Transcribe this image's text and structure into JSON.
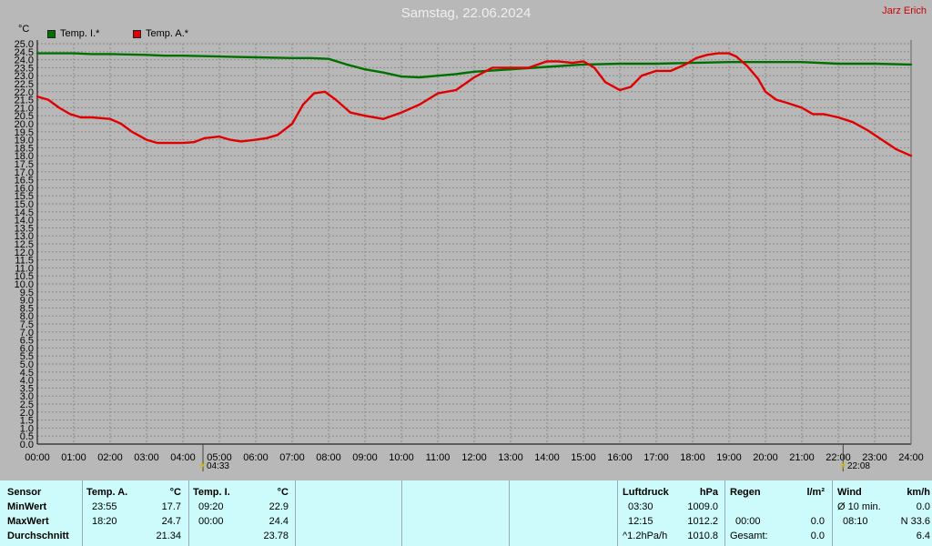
{
  "header": {
    "title": "Samstag, 22.06.2024",
    "author": "Jarz Erich",
    "unit": "°C"
  },
  "legend": [
    {
      "name": "Temp. I.*",
      "color": "#007000"
    },
    {
      "name": "Temp. A.*",
      "color": "#e00000"
    }
  ],
  "sun": {
    "sunrise": "04:33",
    "sunset": "22:08"
  },
  "chart_data": {
    "type": "line",
    "title": "Samstag, 22.06.2024",
    "ylabel": "°C",
    "ylim": [
      0,
      25
    ],
    "yticks": [
      "0.0",
      "0.5",
      "1.0",
      "1.5",
      "2.0",
      "2.5",
      "3.0",
      "3.5",
      "4.0",
      "4.5",
      "5.0",
      "5.5",
      "6.0",
      "6.5",
      "7.0",
      "7.5",
      "8.0",
      "8.5",
      "9.0",
      "9.5",
      "10.0",
      "10.5",
      "11.0",
      "11.5",
      "12.0",
      "12.5",
      "13.0",
      "13.5",
      "14.0",
      "14.5",
      "15.0",
      "15.5",
      "16.0",
      "16.5",
      "17.0",
      "17.5",
      "18.0",
      "18.5",
      "19.0",
      "19.5",
      "20.0",
      "20.5",
      "21.0",
      "21.5",
      "22.0",
      "22.5",
      "23.0",
      "23.5",
      "24.0",
      "24.5",
      "25.0"
    ],
    "xlim": [
      0,
      24
    ],
    "xticks": [
      "00:00",
      "01:00",
      "02:00",
      "03:00",
      "04:00",
      "05:00",
      "06:00",
      "07:00",
      "08:00",
      "09:00",
      "10:00",
      "11:00",
      "12:00",
      "13:00",
      "14:00",
      "15:00",
      "16:00",
      "17:00",
      "18:00",
      "19:00",
      "20:00",
      "21:00",
      "22:00",
      "23:00",
      "24:00"
    ],
    "grid": true,
    "legend_position": "top-left",
    "series": [
      {
        "name": "Temp. I.*",
        "color": "#007000",
        "x": [
          0,
          1,
          1.5,
          2,
          3,
          3.5,
          4,
          5,
          6,
          7,
          7.5,
          8,
          8.5,
          9,
          9.5,
          10,
          10.5,
          11,
          11.5,
          12,
          13,
          14,
          15,
          16,
          17,
          18,
          19,
          20,
          21,
          22,
          23,
          24
        ],
        "y": [
          24.4,
          24.4,
          24.35,
          24.35,
          24.3,
          24.25,
          24.25,
          24.2,
          24.15,
          24.1,
          24.1,
          24.05,
          23.7,
          23.4,
          23.2,
          22.95,
          22.9,
          23.0,
          23.1,
          23.25,
          23.4,
          23.55,
          23.7,
          23.75,
          23.75,
          23.8,
          23.85,
          23.85,
          23.85,
          23.75,
          23.75,
          23.7
        ]
      },
      {
        "name": "Temp. A.*",
        "color": "#e00000",
        "x": [
          0,
          0.3,
          0.6,
          0.9,
          1.2,
          1.5,
          2,
          2.3,
          2.6,
          3,
          3.3,
          3.6,
          4,
          4.3,
          4.6,
          5,
          5.3,
          5.6,
          6,
          6.3,
          6.6,
          7,
          7.3,
          7.6,
          7.9,
          8.2,
          8.6,
          9,
          9.5,
          10,
          10.5,
          11,
          11.5,
          12,
          12.5,
          13,
          13.5,
          14,
          14.3,
          14.7,
          15,
          15.3,
          15.6,
          16,
          16.3,
          16.6,
          17,
          17.4,
          17.8,
          18.1,
          18.4,
          18.7,
          19,
          19.2,
          19.5,
          19.8,
          20,
          20.3,
          20.6,
          21,
          21.3,
          21.6,
          22,
          22.4,
          22.8,
          23.2,
          23.6,
          24
        ],
        "y": [
          21.7,
          21.5,
          21.0,
          20.6,
          20.4,
          20.4,
          20.3,
          20.0,
          19.5,
          19.0,
          18.8,
          18.8,
          18.8,
          18.85,
          19.1,
          19.2,
          19.0,
          18.9,
          19.0,
          19.1,
          19.3,
          20.0,
          21.2,
          21.9,
          22.0,
          21.5,
          20.7,
          20.5,
          20.3,
          20.7,
          21.2,
          21.9,
          22.1,
          22.9,
          23.5,
          23.5,
          23.5,
          23.9,
          23.9,
          23.8,
          23.9,
          23.5,
          22.6,
          22.1,
          22.3,
          23.0,
          23.3,
          23.3,
          23.7,
          24.1,
          24.3,
          24.4,
          24.4,
          24.2,
          23.6,
          22.8,
          22.0,
          21.5,
          21.3,
          21.0,
          20.6,
          20.6,
          20.4,
          20.1,
          19.6,
          19.0,
          18.4,
          18.0
        ]
      }
    ]
  },
  "table": {
    "sensor": {
      "header": "Sensor",
      "rows": [
        "MinWert",
        "MaxWert",
        "Durchschnitt"
      ]
    },
    "temp_a": {
      "header": "Temp. A.",
      "unit": "°C",
      "rows": [
        {
          "time": "23:55",
          "value": "17.7"
        },
        {
          "time": "18:20",
          "value": "24.7"
        },
        {
          "time": "",
          "value": "21.34"
        }
      ]
    },
    "temp_i": {
      "header": "Temp. I.",
      "unit": "°C",
      "rows": [
        {
          "time": "09:20",
          "value": "22.9"
        },
        {
          "time": "00:00",
          "value": "24.4"
        },
        {
          "time": "",
          "value": "23.78"
        }
      ]
    },
    "luftdruck": {
      "header": "Luftdruck",
      "unit": "hPa",
      "rows": [
        {
          "time": "03:30",
          "value": "1009.0"
        },
        {
          "time": "12:15",
          "value": "1012.2"
        },
        {
          "time": "^1.2hPa/h",
          "value": "1010.8"
        }
      ]
    },
    "regen": {
      "header": "Regen",
      "unit": "l/m²",
      "rows": [
        {
          "time": "",
          "value": ""
        },
        {
          "time": "00:00",
          "value": "0.0"
        },
        {
          "time": "Gesamt:",
          "value": "0.0"
        }
      ]
    },
    "wind": {
      "header": "Wind",
      "unit": "km/h",
      "rows": [
        {
          "time": "Ø 10 min.",
          "value": "0.0"
        },
        {
          "time": "08:10",
          "value": "N 33.6"
        },
        {
          "time": "",
          "value": "6.4"
        }
      ]
    }
  }
}
